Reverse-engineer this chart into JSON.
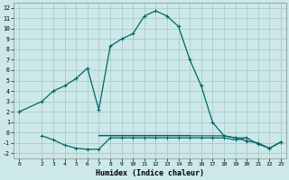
{
  "xlabel": "Humidex (Indice chaleur)",
  "bg_color": "#cce8e8",
  "grid_color": "#aacccc",
  "line_color": "#006666",
  "xlim": [
    -0.5,
    23.5
  ],
  "ylim": [
    -2.5,
    12.5
  ],
  "xticks": [
    0,
    2,
    3,
    4,
    5,
    6,
    7,
    8,
    9,
    10,
    11,
    12,
    13,
    14,
    15,
    16,
    17,
    18,
    19,
    20,
    21,
    22,
    23
  ],
  "yticks": [
    -2,
    -1,
    0,
    1,
    2,
    3,
    4,
    5,
    6,
    7,
    8,
    9,
    10,
    11,
    12
  ],
  "main_x": [
    0,
    2,
    3,
    4,
    5,
    6,
    7,
    8,
    9,
    10,
    11,
    12,
    13,
    14,
    15,
    16,
    17,
    18,
    19,
    20,
    21,
    22,
    23
  ],
  "main_y": [
    2.0,
    3.0,
    4.0,
    4.5,
    5.2,
    6.2,
    2.2,
    8.3,
    9.0,
    9.5,
    11.2,
    11.7,
    11.2,
    10.2,
    7.0,
    4.5,
    1.0,
    -0.3,
    -0.5,
    -0.8,
    -1.0,
    -1.5,
    -0.9
  ],
  "line2_x": [
    2,
    3,
    4,
    5,
    6,
    7,
    8,
    9,
    10,
    11,
    12,
    13,
    14,
    15,
    16,
    17,
    18,
    19,
    20,
    21,
    22,
    23
  ],
  "line2_y": [
    -0.3,
    -0.7,
    -1.2,
    -1.5,
    -1.6,
    -1.6,
    -0.5,
    -0.5,
    -0.5,
    -0.5,
    -0.5,
    -0.5,
    -0.5,
    -0.5,
    -0.5,
    -0.5,
    -0.5,
    -0.7,
    -0.5,
    -1.1,
    -1.5,
    -0.9
  ],
  "line3_x": [
    7,
    8,
    9,
    10,
    11,
    12,
    13,
    14,
    15,
    16,
    17,
    18,
    19,
    20
  ],
  "line3_y": [
    -0.3,
    -0.3,
    -0.3,
    -0.3,
    -0.3,
    -0.3,
    -0.3,
    -0.3,
    -0.3,
    -0.3,
    -0.3,
    -0.3,
    -0.5,
    -0.5
  ],
  "line4_x": [
    7,
    8,
    9,
    10,
    11,
    12,
    13,
    14,
    15
  ],
  "line4_y": [
    -0.2,
    -0.2,
    -0.2,
    -0.2,
    -0.2,
    -0.2,
    -0.2,
    -0.2,
    -0.2
  ]
}
